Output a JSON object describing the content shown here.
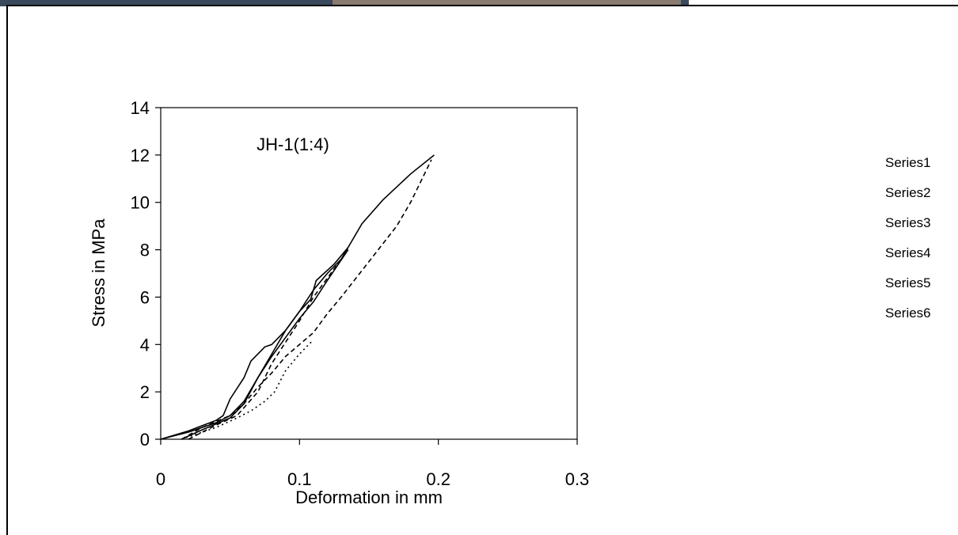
{
  "chart_data": {
    "type": "line",
    "title": "JH-1(1:4)",
    "x_label": "Deformation in mm",
    "y_label": "Stress in MPa",
    "xlim": [
      0,
      0.3
    ],
    "xticks": [
      0,
      0.1,
      0.2,
      0.3
    ],
    "ylim": [
      0,
      14
    ],
    "yticks": [
      0,
      2,
      4,
      6,
      8,
      10,
      12,
      14
    ],
    "grid": false,
    "legend": "right",
    "series": [
      {
        "name": "Series1",
        "color": "#000000",
        "dash": "solid",
        "x": [
          0,
          0.02,
          0.04,
          0.05,
          0.06,
          0.07,
          0.08,
          0.09,
          0.1,
          0.11,
          0.12,
          0.13,
          0.145,
          0.16,
          0.18,
          0.197
        ],
        "values": [
          0,
          0.3,
          0.7,
          1.0,
          1.6,
          2.6,
          3.6,
          4.6,
          5.4,
          6.3,
          7.0,
          7.6,
          9.1,
          10.1,
          11.2,
          12.0
        ]
      },
      {
        "name": "Series2",
        "color": "#000000",
        "dash": "solid",
        "x": [
          0,
          0.02,
          0.04,
          0.045,
          0.05,
          0.06,
          0.065,
          0.075,
          0.08,
          0.09,
          0.1,
          0.108,
          0.112,
          0.125,
          0.135
        ],
        "values": [
          0,
          0.35,
          0.8,
          1.0,
          1.7,
          2.6,
          3.3,
          3.9,
          4.0,
          4.6,
          5.4,
          5.9,
          6.7,
          7.4,
          8.1
        ]
      },
      {
        "name": "Series3",
        "color": "#000000",
        "dash": "solid",
        "x": [
          0.015,
          0.03,
          0.05,
          0.06,
          0.07,
          0.08,
          0.09,
          0.1,
          0.11,
          0.12,
          0.135
        ],
        "values": [
          0,
          0.4,
          0.9,
          1.5,
          2.6,
          3.5,
          4.3,
          5.1,
          5.8,
          6.7,
          8.0
        ]
      },
      {
        "name": "Series4",
        "color": "#000000",
        "dash": "dashed",
        "x": [
          0.015,
          0.03,
          0.05,
          0.06,
          0.07,
          0.08,
          0.09,
          0.1,
          0.11,
          0.12,
          0.13,
          0.15,
          0.17,
          0.18,
          0.195
        ],
        "values": [
          0,
          0.5,
          1.0,
          1.5,
          2.2,
          2.8,
          3.5,
          4.0,
          4.5,
          5.3,
          6.0,
          7.5,
          9.0,
          10.0,
          11.8
        ]
      },
      {
        "name": "Series5",
        "color": "#000000",
        "dash": "dashed",
        "x": [
          0.02,
          0.04,
          0.055,
          0.07,
          0.08,
          0.09,
          0.1,
          0.11,
          0.125,
          0.135
        ],
        "values": [
          0,
          0.6,
          1.0,
          2.0,
          3.2,
          4.1,
          5.0,
          6.0,
          7.2,
          8.0
        ]
      },
      {
        "name": "Series6",
        "color": "#000000",
        "dash": "dotted",
        "x": [
          0.015,
          0.04,
          0.055,
          0.065,
          0.075,
          0.082,
          0.09,
          0.1,
          0.11
        ],
        "values": [
          0,
          0.5,
          0.9,
          1.2,
          1.6,
          2.0,
          2.9,
          3.6,
          4.2
        ]
      }
    ]
  }
}
